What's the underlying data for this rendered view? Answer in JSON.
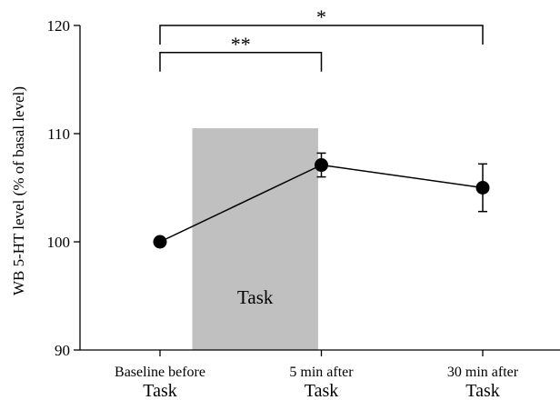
{
  "chart_data": {
    "type": "line",
    "ylabel": "WB 5-HT level (% of basal level)",
    "ylim": [
      90,
      120
    ],
    "yticks": [
      90,
      100,
      110,
      120
    ],
    "categories": [
      {
        "line1": "Baseline before",
        "line2": "Task"
      },
      {
        "line1": "5 min after",
        "line2": "Task"
      },
      {
        "line1": "30 min after",
        "line2": "Task"
      }
    ],
    "series": [
      {
        "values": [
          100,
          107.1,
          105.0
        ],
        "error": [
          0,
          1.1,
          2.2
        ],
        "color": "#000000"
      }
    ],
    "shaded_region": {
      "label": "Task",
      "from_category": 0.2,
      "to_category": 0.98,
      "top": 110.5,
      "color": "#c0c0c0"
    },
    "significance": [
      {
        "from": 0,
        "to": 1,
        "level": 117.5,
        "label": "**"
      },
      {
        "from": 0,
        "to": 2,
        "level": 120,
        "label": "*"
      }
    ]
  }
}
